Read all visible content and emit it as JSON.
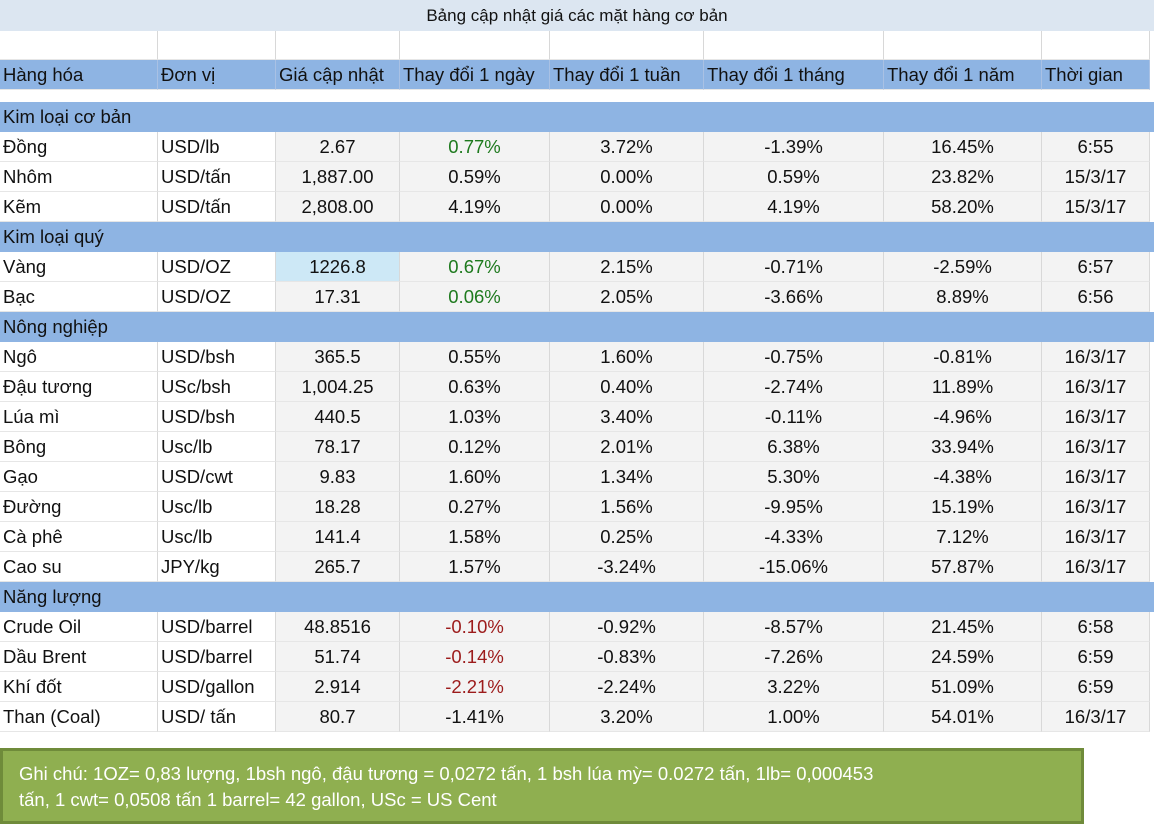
{
  "title": "Bảng cập nhật giá các mặt hàng cơ bản",
  "columns": [
    "Hàng hóa",
    "Đơn vị",
    "Giá cập nhật",
    "Thay đổi 1 ngày",
    "Thay đổi 1 tuần",
    "Thay đổi 1 tháng",
    "Thay đổi 1 năm",
    "Thời gian"
  ],
  "colors": {
    "header_bg": "#8eb4e3",
    "positive": "#1e7a1e",
    "negative": "#9c1b1b",
    "note_bg": "#8faf50",
    "selected_cell": "#cde8f6"
  },
  "sections": [
    {
      "name": "Kim loại cơ bản",
      "rows": [
        {
          "name": "Đồng",
          "unit": "USD/lb",
          "price": "2.67",
          "day": "0.77%",
          "day_color": "pos",
          "week": "3.72%",
          "month": "-1.39%",
          "year": "16.45%",
          "time": "6:55"
        },
        {
          "name": "Nhôm",
          "unit": "USD/tấn",
          "price": "1,887.00",
          "day": "0.59%",
          "day_color": "",
          "week": "0.00%",
          "month": "0.59%",
          "year": "23.82%",
          "time": "15/3/17"
        },
        {
          "name": "Kẽm",
          "unit": "USD/tấn",
          "price": "2,808.00",
          "day": "4.19%",
          "day_color": "",
          "week": "0.00%",
          "month": "4.19%",
          "year": "58.20%",
          "time": "15/3/17"
        }
      ]
    },
    {
      "name": "Kim loại quý",
      "rows": [
        {
          "name": "Vàng",
          "unit": "USD/OZ",
          "price": "1226.8",
          "day": "0.67%",
          "day_color": "pos",
          "week": "2.15%",
          "month": "-0.71%",
          "year": "-2.59%",
          "time": "6:57",
          "selected": true
        },
        {
          "name": "Bạc",
          "unit": "USD/OZ",
          "price": "17.31",
          "day": "0.06%",
          "day_color": "pos",
          "week": "2.05%",
          "month": "-3.66%",
          "year": "8.89%",
          "time": "6:56"
        }
      ]
    },
    {
      "name": "Nông nghiệp",
      "rows": [
        {
          "name": "Ngô",
          "unit": "USD/bsh",
          "price": "365.5",
          "day": "0.55%",
          "day_color": "",
          "week": "1.60%",
          "month": "-0.75%",
          "year": "-0.81%",
          "time": "16/3/17"
        },
        {
          "name": "Đậu tương",
          "unit": "USc/bsh",
          "price": "1,004.25",
          "day": "0.63%",
          "day_color": "",
          "week": "0.40%",
          "month": "-2.74%",
          "year": "11.89%",
          "time": "16/3/17"
        },
        {
          "name": "Lúa mì",
          "unit": "USD/bsh",
          "price": "440.5",
          "day": "1.03%",
          "day_color": "",
          "week": "3.40%",
          "month": "-0.11%",
          "year": "-4.96%",
          "time": "16/3/17"
        },
        {
          "name": "Bông",
          "unit": "Usc/lb",
          "price": "78.17",
          "day": "0.12%",
          "day_color": "",
          "week": "2.01%",
          "month": "6.38%",
          "year": "33.94%",
          "time": "16/3/17"
        },
        {
          "name": "Gạo",
          "unit": "USD/cwt",
          "price": "9.83",
          "day": "1.60%",
          "day_color": "",
          "week": "1.34%",
          "month": "5.30%",
          "year": "-4.38%",
          "time": "16/3/17"
        },
        {
          "name": "Đường",
          "unit": "Usc/lb",
          "price": "18.28",
          "day": "0.27%",
          "day_color": "",
          "week": "1.56%",
          "month": "-9.95%",
          "year": "15.19%",
          "time": "16/3/17"
        },
        {
          "name": "Cà phê",
          "unit": "Usc/lb",
          "price": "141.4",
          "day": "1.58%",
          "day_color": "",
          "week": "0.25%",
          "month": "-4.33%",
          "year": "7.12%",
          "time": "16/3/17"
        },
        {
          "name": "Cao su",
          "unit": "JPY/kg",
          "price": "265.7",
          "day": "1.57%",
          "day_color": "",
          "week": "-3.24%",
          "month": "-15.06%",
          "year": "57.87%",
          "time": "16/3/17"
        }
      ]
    },
    {
      "name": "Năng lượng",
      "rows": [
        {
          "name": "Crude Oil",
          "unit": "USD/barrel",
          "price": "48.8516",
          "day": "-0.10%",
          "day_color": "neg",
          "week": "-0.92%",
          "month": "-8.57%",
          "year": "21.45%",
          "time": "6:58"
        },
        {
          "name": "Dầu Brent",
          "unit": "USD/barrel",
          "price": "51.74",
          "day": "-0.14%",
          "day_color": "neg",
          "week": "-0.83%",
          "month": "-7.26%",
          "year": "24.59%",
          "time": "6:59"
        },
        {
          "name": "Khí đốt",
          "unit": "USD/gallon",
          "price": "2.914",
          "day": "-2.21%",
          "day_color": "neg",
          "week": "-2.24%",
          "month": "3.22%",
          "year": "51.09%",
          "time": "6:59"
        },
        {
          "name": "Than (Coal)",
          "unit": "USD/ tấn",
          "price": "80.7",
          "day": "-1.41%",
          "day_color": "",
          "week": "3.20%",
          "month": "1.00%",
          "year": "54.01%",
          "time": "16/3/17"
        }
      ]
    }
  ],
  "note": {
    "line1": "Ghi chú: 1OZ= 0,83 lượng,  1bsh ngô, đậu tương = 0,0272 tấn, 1 bsh lúa mỳ=  0.0272 tấn, 1lb= 0,000453",
    "line2": "tấn, 1 cwt= 0,0508 tấn 1 barrel= 42 gallon, USc = US Cent"
  }
}
